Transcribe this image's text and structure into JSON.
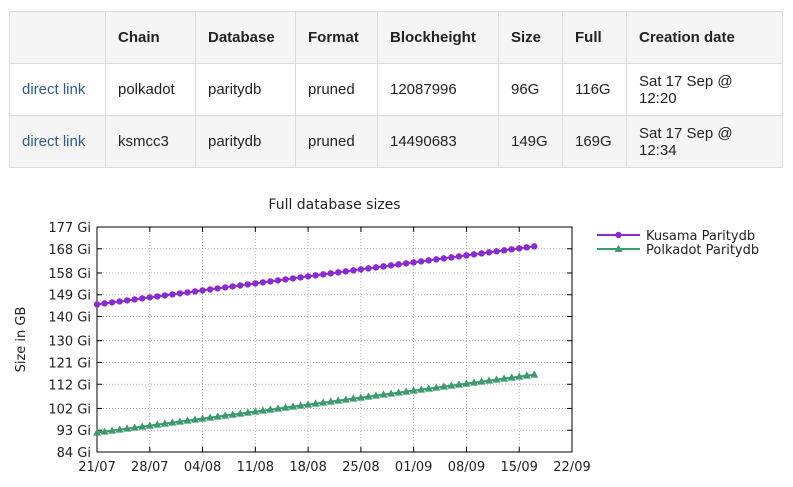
{
  "table": {
    "headers": [
      "",
      "Chain",
      "Database",
      "Format",
      "Blockheight",
      "Size",
      "Full",
      "Creation date"
    ],
    "rows": [
      {
        "link": "direct link",
        "chain": "polkadot",
        "database": "paritydb",
        "format": "pruned",
        "blockheight": "12087996",
        "size": "96G",
        "full": "116G",
        "created": "Sat 17 Sep @ 12:20"
      },
      {
        "link": "direct link",
        "chain": "ksmcc3",
        "database": "paritydb",
        "format": "pruned",
        "blockheight": "14490683",
        "size": "149G",
        "full": "169G",
        "created": "Sat 17 Sep @ 12:34"
      }
    ]
  },
  "chart_data": {
    "type": "line",
    "title": "Full database sizes",
    "ylabel": "Size in GB",
    "xlabel": "",
    "x_ticks": [
      "21/07",
      "28/07",
      "04/08",
      "11/08",
      "18/08",
      "25/08",
      "01/09",
      "08/09",
      "15/09",
      "22/09"
    ],
    "y_ticks": [
      "84 Gi",
      "93 Gi",
      "102 Gi",
      "112 Gi",
      "121 Gi",
      "130 Gi",
      "140 Gi",
      "149 Gi",
      "158 Gi",
      "168 Gi",
      "177 Gi"
    ],
    "y_tick_values": [
      84,
      93,
      102,
      112,
      121,
      130,
      140,
      149,
      158,
      168,
      177
    ],
    "xlim": [
      "2022-07-21",
      "2022-09-22"
    ],
    "ylim": [
      84,
      177
    ],
    "grid": true,
    "legend": "right",
    "series": [
      {
        "name": "Kusama Paritydb",
        "color": "#8a2bd2",
        "marker": "circle",
        "start": "2022-07-21",
        "end": "2022-09-17",
        "start_value": 145,
        "end_value": 169,
        "points": 59
      },
      {
        "name": "Polkadot Paritydb",
        "color": "#3e9a6e",
        "marker": "triangle",
        "start": "2022-07-21",
        "end": "2022-09-17",
        "start_value": 92,
        "end_value": 116,
        "points": 59
      }
    ]
  }
}
